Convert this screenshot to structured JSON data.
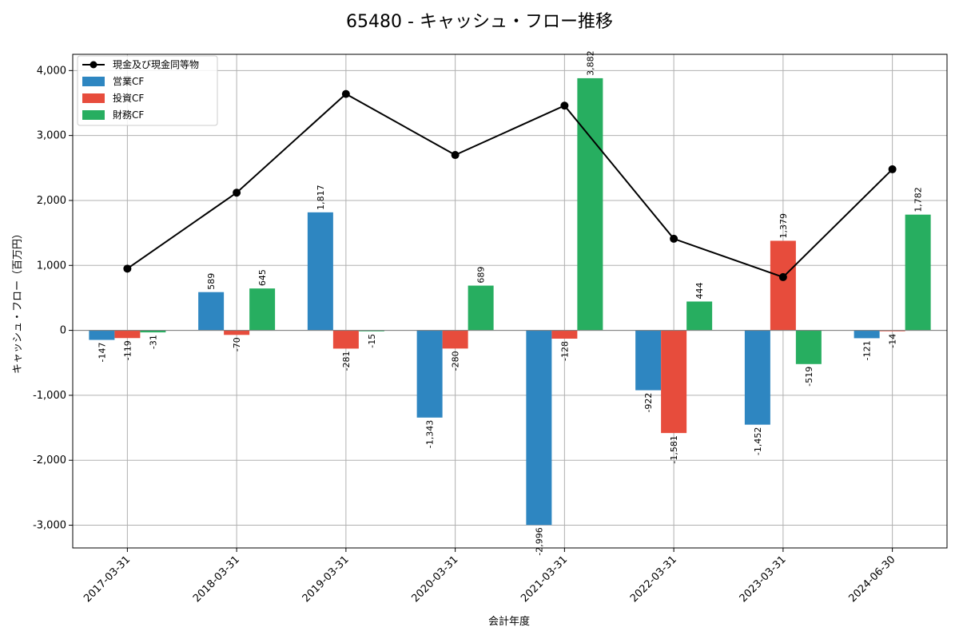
{
  "chart_data": {
    "type": "bar",
    "title": "65480 - キャッシュ・フロー推移",
    "xlabel": "会計年度",
    "ylabel": "キャッシュ・フロー（百万円）",
    "ylim": [
      -3350,
      4250
    ],
    "yticks": [
      -3000,
      -2000,
      -1000,
      0,
      1000,
      2000,
      3000,
      4000
    ],
    "ytick_labels": [
      "-3,000",
      "-2,000",
      "-1,000",
      "0",
      "1,000",
      "2,000",
      "3,000",
      "4,000"
    ],
    "grid": true,
    "legend_position": "top-left",
    "categories": [
      "2017-03-31",
      "2018-03-31",
      "2019-03-31",
      "2020-03-31",
      "2021-03-31",
      "2022-03-31",
      "2023-03-31",
      "2024-06-30"
    ],
    "series": [
      {
        "name": "営業CF",
        "type": "bar",
        "color": "#2e86c1",
        "values": [
          -147,
          589,
          1817,
          -1343,
          -2996,
          -922,
          -1452,
          -121
        ],
        "labels": [
          "-147",
          "589",
          "1,817",
          "-1,343",
          "-2,996",
          "-922",
          "-1,452",
          "-121"
        ]
      },
      {
        "name": "投資CF",
        "type": "bar",
        "color": "#e74c3c",
        "values": [
          -119,
          -70,
          -281,
          -280,
          -128,
          -1581,
          1379,
          -14
        ],
        "labels": [
          "-119",
          "-70",
          "-281",
          "-280",
          "-128",
          "-1,581",
          "1,379",
          "-14"
        ]
      },
      {
        "name": "財務CF",
        "type": "bar",
        "color": "#27ae60",
        "values": [
          -31,
          645,
          -15,
          689,
          3882,
          444,
          -519,
          1782
        ],
        "labels": [
          "-31",
          "645",
          "-15",
          "689",
          "3,882",
          "444",
          "-519",
          "1,782"
        ]
      },
      {
        "name": "現金及び現金同等物",
        "type": "line",
        "color": "#000000",
        "values": [
          950,
          2120,
          3640,
          2700,
          3460,
          1410,
          820,
          2480
        ]
      }
    ]
  }
}
